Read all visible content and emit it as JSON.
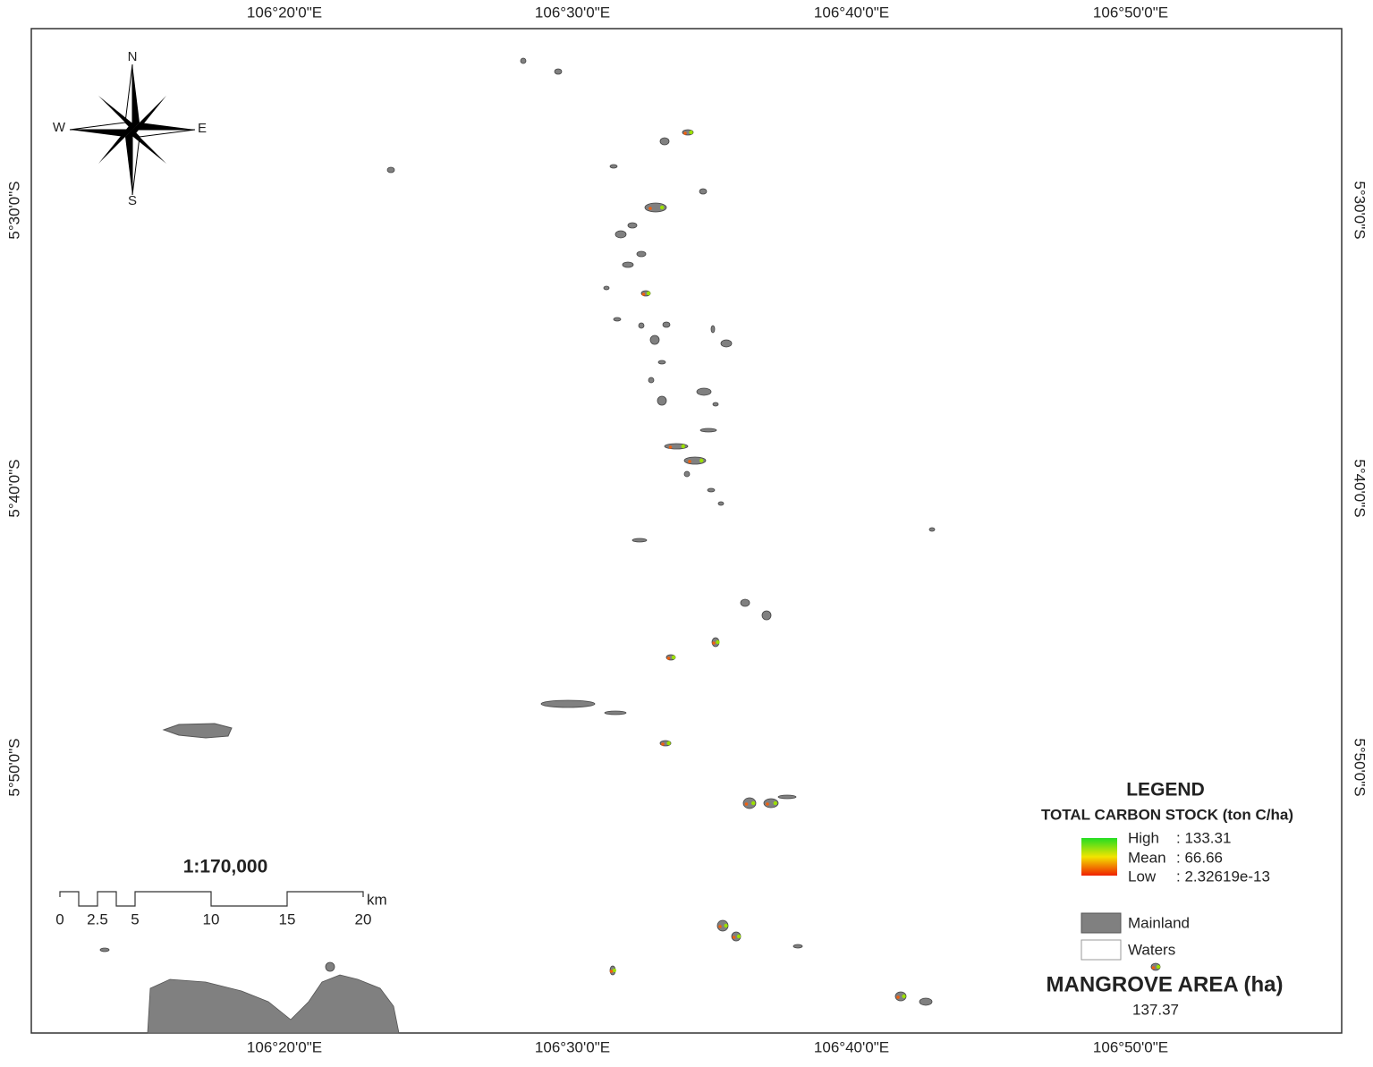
{
  "map": {
    "longitude_labels": [
      "106°20'0\"E",
      "106°30'0\"E",
      "106°40'0\"E",
      "106°50'0\"E"
    ],
    "latitude_labels": [
      "5°30'0\"S",
      "5°40'0\"S",
      "5°50'0\"S"
    ]
  },
  "compass": {
    "north": "N",
    "east": "E",
    "south": "S",
    "west": "W"
  },
  "scale": {
    "ratio": "1:170,000",
    "ticks": [
      "0",
      "2.5",
      "5",
      "10",
      "15",
      "20"
    ],
    "unit": "km"
  },
  "legend": {
    "title": "LEGEND",
    "subtitle": "TOTAL CARBON STOCK (ton C/ha)",
    "gradient": [
      {
        "label": "High",
        "value": ": 133.31"
      },
      {
        "label": "Mean",
        "value": ": 66.66"
      },
      {
        "label": "Low",
        "value": ": 2.32619e-13"
      }
    ],
    "classes": [
      "Mainland",
      "Waters"
    ],
    "area_title": "MANGROVE AREA (ha)",
    "area_value": "137.37"
  }
}
